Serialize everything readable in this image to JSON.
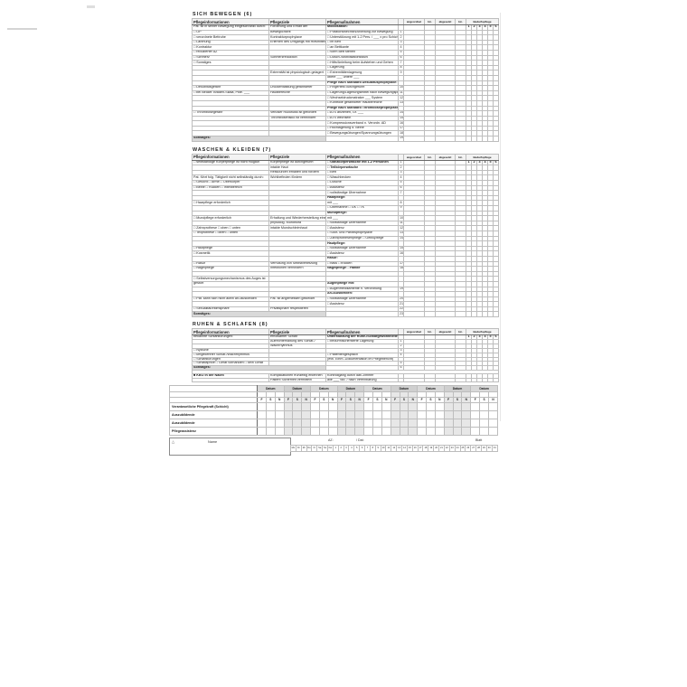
{
  "colors": {
    "border": "#bdbdbd",
    "strong": "#6a6a6a",
    "shade": "#d9d9d9",
    "alt_shade": "#e7e7e7",
    "text": "#1c1c1c"
  },
  "sonstiges_label": "Sonstiges:",
  "column_headers": {
    "info": "Pflegeinformationen",
    "goals": "Pflegeziele",
    "measures": "Pflegemaßnahmen",
    "ordered": "angeordnet",
    "sign1": "Hz.",
    "discontinued": "abgesetzt",
    "sign2": "Hz.",
    "prn": "Bedarfspflege",
    "prn_numbers": [
      "1",
      "2",
      "3",
      "4",
      "5",
      "6"
    ]
  },
  "sections": [
    {
      "id": "sich-bewegen",
      "title": "SICH BEWEGEN (6)",
      "rows": [
        {
          "info": "Pat. ist in seiner Bewegung eingeschränkt durch:",
          "goal": "Förderung und Erhalt der",
          "measure": "Mobilisation:",
          "mbold": true,
          "nums": true
        },
        {
          "info": "□ OP",
          "goal": "Beweglichkeit",
          "measure": "□ Positionswechsel/Anleitung zur Bewegung",
          "num": "1"
        },
        {
          "info": "□ verordnete Bettruhe",
          "goal": "Kontrakturprophylaxe",
          "measure": "□ Unterstützung mit 1-2 Pers. / ___ x pro Schicht",
          "num": "2"
        },
        {
          "info": "□ Lähmung",
          "goal": "Erlernen des Umgangs mit Hilfsmitteln",
          "measure": "□ im Bett",
          "num": "3"
        },
        {
          "info": "□ Kontraktur",
          "goal": "",
          "measure": "□ an Bettkante",
          "num": "4"
        },
        {
          "info": "□ reduzierter AZ",
          "goal": "",
          "measure": "□ vorm Bett stehen",
          "num": "5"
        },
        {
          "info": "□ Schmerz",
          "goal": "Schmerzreduktion",
          "measure": "□ Dusch-/Mobilisationsstuhl",
          "num": "6"
        },
        {
          "info": "□ Sonstiges",
          "goal": "",
          "measure": "□ Hilfe/Anleitung beim Aufstehen und Gehen",
          "num": "7"
        },
        {
          "info": "",
          "goal": "",
          "measure": "□ Lagerung",
          "num": "8"
        },
        {
          "info": "",
          "goal": "Extremität ist physiologisch gelagert",
          "measure": "□ Extremitätenlagerung",
          "num": "9"
        },
        {
          "info": "",
          "goal": "",
          "measure": "    obere ___   untere ___",
          "num": ""
        },
        {
          "info": "",
          "goal": "",
          "measure": "Pflege nach Standard Dekubitusprophylaxe:",
          "mbold": true
        },
        {
          "info": "□ Dekubitusgefahr",
          "goal": "Druckentlastung gefährdeter",
          "measure": "□ Fingertest durchgeführt",
          "num": "10"
        },
        {
          "info": "   □ bei Bedarf: Braden-Skala, Pkte. ___",
          "goal": "Hautbereiche",
          "measure": "□ Lagerung/Lagerungsmittel nach Bewegungsplan",
          "num": "11"
        },
        {
          "info": "",
          "goal": "",
          "measure": "□ Wechseldruckmatratze ___ System",
          "num": "12"
        },
        {
          "info": "",
          "goal": "",
          "measure": "□ Kontrolle gefährdeter Hautbereiche",
          "num": "13"
        },
        {
          "info": "",
          "goal": "",
          "measure": "Pflege nach Standard Thromboseprophylaxe:",
          "mbold": true
        },
        {
          "info": "□ Thrombosegefahr",
          "goal": "Venöser Rückfluss ist gefördert",
          "measure": "□ ATS anziehen, Gr. ___",
          "num": "14"
        },
        {
          "info": "",
          "goal": "Thromboserisiko ist vermindert",
          "measure": "□ ATS wechseln",
          "num": "15"
        },
        {
          "info": "",
          "goal": "",
          "measure": "□ Kompressionsverband n. Verordn. AD",
          "num": "16"
        },
        {
          "info": "",
          "goal": "",
          "measure": "□ Hochlagerung d. Beine",
          "num": "17"
        },
        {
          "info": "",
          "goal": "",
          "measure": "□ Bewegungsübungen/Spannungsübungen",
          "num": "18"
        },
        {
          "sonst": true,
          "measure": "",
          "num": "19"
        }
      ]
    },
    {
      "id": "waschen-kleiden",
      "title": "WASCHEN & KLEIDEN (7)",
      "rows": [
        {
          "info": "□ selbständige Körperpflege ist nicht möglich",
          "goal": "Körperpflege ist durchgeführt",
          "measure": "□ Ganzkörperwäsche mit 1-2 Personen",
          "mbold": true,
          "num": "1",
          "nums": true
        },
        {
          "info": "",
          "goal": "intakte Haut",
          "measure": "□ Teilkörperwäsche",
          "mbold": true,
          "num": "2"
        },
        {
          "info": "",
          "goal": "Ressourcen erhalten und fördern",
          "measure": "□ Bett",
          "num": "3"
        },
        {
          "info": "Pat. führt folg. Tätigkeit nicht selbständig durch:",
          "goal": "Wohlbefinden fördern",
          "measure": "□ Waschbecken",
          "num": "4"
        },
        {
          "info": "□ Gesicht    □ Arme    □ Oberkörper",
          "goal": "",
          "measure": "□ Dusche",
          "num": "5"
        },
        {
          "info": "□ Beine    □ Rücken    □ Intimbereich",
          "goal": "",
          "measure": "□ Assistenz",
          "num": "6"
        },
        {
          "info": "",
          "goal": "",
          "measure": "□ vollständige Übernahme",
          "num": "7"
        },
        {
          "info": "",
          "goal": "",
          "measure": "Haarpflege:",
          "mbold": true
        },
        {
          "info": "□ Haarpflege erforderlich",
          "goal": "",
          "measure": "mit ___",
          "num": "8"
        },
        {
          "info": "",
          "goal": "",
          "measure": "□ Übernahme    □ GK    □ TK",
          "num": "9"
        },
        {
          "info": "",
          "goal": "",
          "measure": "Mundpflege:",
          "mbold": true
        },
        {
          "info": "□ Mundpflege erforderlich",
          "goal": "Erhaltung und Wiederherstellung einer",
          "measure": "mit ___",
          "num": "10"
        },
        {
          "info": "",
          "goal": "physiolog. Mundflora",
          "measure": "□ vollständige Übernahme",
          "num": "11"
        },
        {
          "info": "□ Zahnprothese    □ oben    □ unten",
          "goal": "intakte Mundschleimhaut",
          "measure": "□ Assistenz",
          "num": "12"
        },
        {
          "info": "□ Teilprothese    □ oben    □ unten",
          "goal": "",
          "measure": "□ Soor- und Parotisprophylaxe",
          "num": "13"
        },
        {
          "info": "",
          "goal": "",
          "measure": "□ Zahnprothesenpflege    □ Gebißpflege",
          "num": "14"
        },
        {
          "info": "",
          "goal": "",
          "measure": "Hautpflege:",
          "mbold": true
        },
        {
          "info": "□ Hautpflege",
          "goal": "",
          "measure": "□ vollständige Übernahme",
          "num": "15"
        },
        {
          "info": "□ Kosmetik",
          "goal": "",
          "measure": "□ Assistenz",
          "num": "16"
        },
        {
          "info": "",
          "goal": "",
          "measure": "Rasur:",
          "mbold": true
        },
        {
          "info": "□ Rasur",
          "goal": "Verhütung von Selbstverletzung",
          "measure": "□ nass    □ trocken",
          "num": "17"
        },
        {
          "info": "□ Nagelpflege",
          "goal": "Infektionen verhindern",
          "measure": "Nagelpflege    □ Hände",
          "mbold": true,
          "num": "18"
        },
        {
          "info": "",
          "goal": "",
          "measure": ""
        },
        {
          "info": "□ Selbstversorgungsmechanismus des Auges ist",
          "goal": "",
          "measure": ""
        },
        {
          "info": "   gestört",
          "goal": "",
          "measure": "Augenpflege mit:",
          "mbold": true
        },
        {
          "info": "",
          "goal": "",
          "measure": "□ Augenmedikamente n. Verordnung",
          "num": "19"
        },
        {
          "info": "",
          "goal": "",
          "measure": "An-/Auskleiden:",
          "mbold": true
        },
        {
          "info": "□ Pat. kann sich nicht allein an-/auskleiden",
          "goal": "Pat. ist angemessen gekleidet",
          "measure": "□ vollständige Übernahme",
          "num": "20"
        },
        {
          "info": "",
          "goal": "",
          "measure": "□ Assistenz",
          "num": "21"
        },
        {
          "info": "□ Sexualität/Intimsphäre",
          "goal": "Privatsphäre respektieren",
          "measure": "",
          "num": "22"
        },
        {
          "sonst": true,
          "measure": "",
          "num": "23"
        }
      ]
    },
    {
      "id": "ruhen-schlafen",
      "title": "RUHEN & SCHLAFEN (8)",
      "rows": [
        {
          "info": "bekannte Schlafstörungen:",
          "goal": "erholsamer Schlaf",
          "measure": "Unterstützung der Ruhe-/Schlafgewohnheiten:",
          "mbold": true,
          "nums": true
        },
        {
          "info": "",
          "goal": "Aufrechterhaltung des Schlaf-/",
          "measure": "□ bedürfnisorientierte Lagerung",
          "num": "1"
        },
        {
          "info": "",
          "goal": "Wachrhythmus",
          "measure": "",
          "num": "2"
        },
        {
          "info": "□ Nykturie",
          "goal": "",
          "measure": "",
          "num": "3"
        },
        {
          "info": "□ umgekehrter Schlaf-/Wachrhythmus",
          "goal": "",
          "measure": "□ Patientengespräch",
          "num": "4"
        },
        {
          "info": "□ Schlafstörungen",
          "goal": "",
          "measure": "   (evtl. Einm.-Dokumentation im Pflegebericht)"
        },
        {
          "info": "□ Schlafapnoe   □ Gerät vorhanden   □ kein Gerät",
          "goal": "",
          "measure": "",
          "num": "5"
        },
        {
          "sonst": true,
          "measure": "",
          "num": "6"
        },
        {
          "spacer": true
        },
        {
          "info": "■ KBO in der Nacht",
          "infob": true,
          "goal": "Komplikationen frühzeitig erkennen",
          "measure": "Kontrollgang durch das Zimmer",
          "kbo": true
        },
        {
          "info": "",
          "goal": "Patient Sicherheit vermitteln",
          "measure": "   alle ___ Std. / nach Vereinbarung"
        }
      ]
    }
  ],
  "signature_grid": {
    "datum_label": "Datum",
    "shift_labels": [
      "F",
      "S",
      "N"
    ],
    "group_count": 9,
    "row_labels": [
      "Verantwortliche Pflegekraft (Schicht)",
      "Auszubildende",
      "Auszubildende",
      "Pflegeassistenz"
    ]
  },
  "footer": {
    "delta_symbol": "△",
    "name_label": "Name",
    "az_label": "AZ:",
    "dat_label": "/ Dat:",
    "blatt_label": "Blatt",
    "calendar_strip": [
      "Mo",
      "Di",
      "Mi",
      "Do",
      "Fr",
      "Sa",
      "So",
      "Fei",
      "1",
      "2",
      "3",
      "4",
      "5",
      "6",
      "7",
      "8",
      "9",
      "10",
      "11",
      "12",
      "13",
      "14",
      "15",
      "16",
      "17",
      "18",
      "19",
      "20",
      "21",
      "22",
      "23",
      "24",
      "25",
      "26",
      "27",
      "28",
      "29",
      "30",
      "31"
    ]
  }
}
